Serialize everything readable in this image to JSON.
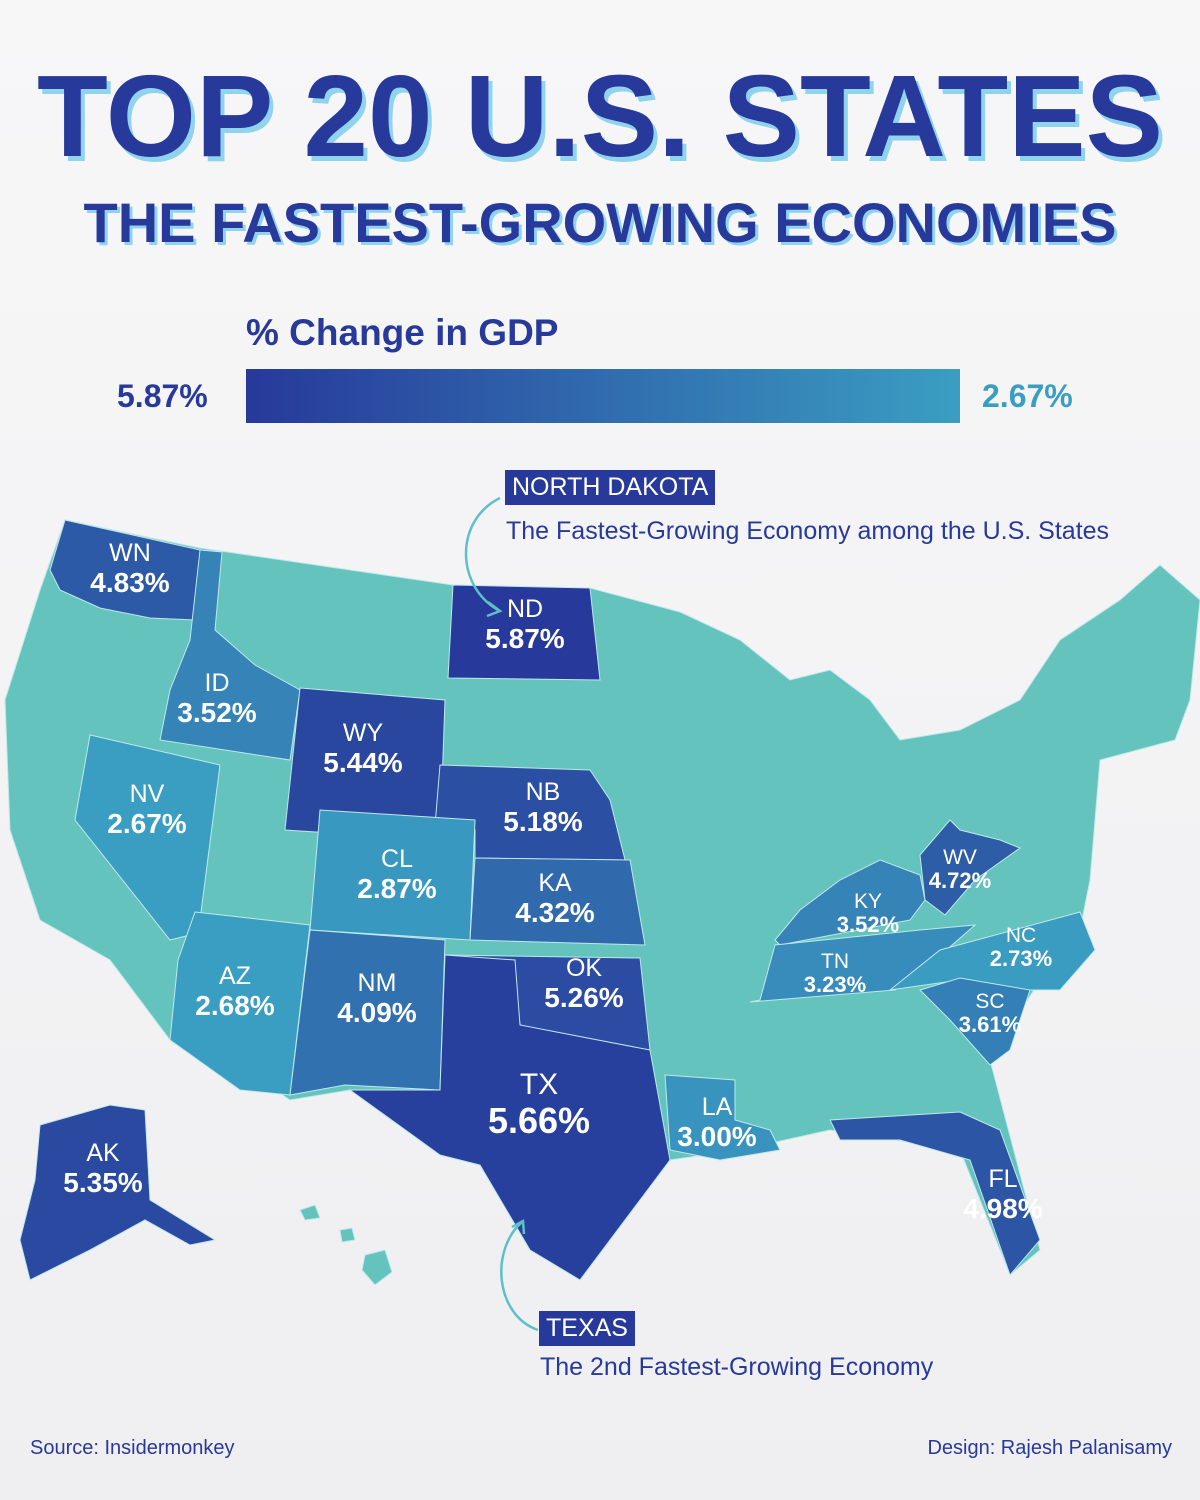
{
  "header": {
    "title": "TOP 20 U.S. STATES",
    "subtitle": "THE FASTEST-GROWING ECONOMIES"
  },
  "legend": {
    "title": "% Change in GDP",
    "max_label": "5.87%",
    "min_label": "2.67%",
    "max": 5.87,
    "min": 2.67,
    "color_max": "#27399a",
    "color_min": "#3a9ec2"
  },
  "map": {
    "base_color": "#64c4bd",
    "states": [
      {
        "abbr": "WN",
        "value": 4.83,
        "label": "4.83%"
      },
      {
        "abbr": "ID",
        "value": 3.52,
        "label": "3.52%"
      },
      {
        "abbr": "WY",
        "value": 5.44,
        "label": "5.44%"
      },
      {
        "abbr": "ND",
        "value": 5.87,
        "label": "5.87%"
      },
      {
        "abbr": "NB",
        "value": 5.18,
        "label": "5.18%"
      },
      {
        "abbr": "KA",
        "value": 4.32,
        "label": "4.32%"
      },
      {
        "abbr": "CL",
        "value": 2.87,
        "label": "2.87%"
      },
      {
        "abbr": "NV",
        "value": 2.67,
        "label": "2.67%"
      },
      {
        "abbr": "AZ",
        "value": 2.68,
        "label": "2.68%"
      },
      {
        "abbr": "NM",
        "value": 4.09,
        "label": "4.09%"
      },
      {
        "abbr": "OK",
        "value": 5.26,
        "label": "5.26%"
      },
      {
        "abbr": "TX",
        "value": 5.66,
        "label": "5.66%"
      },
      {
        "abbr": "LA",
        "value": 3.0,
        "label": "3.00%"
      },
      {
        "abbr": "AK",
        "value": 5.35,
        "label": "5.35%"
      },
      {
        "abbr": "FL",
        "value": 4.98,
        "label": "4.98%"
      },
      {
        "abbr": "KY",
        "value": 3.52,
        "label": "3.52%"
      },
      {
        "abbr": "WV",
        "value": 4.72,
        "label": "4.72%"
      },
      {
        "abbr": "TN",
        "value": 3.23,
        "label": "3.23%"
      },
      {
        "abbr": "NC",
        "value": 2.73,
        "label": "2.73%"
      },
      {
        "abbr": "SC",
        "value": 3.61,
        "label": "3.61%"
      }
    ]
  },
  "callouts": [
    {
      "state": "NORTH DAKOTA",
      "text": "The Fastest-Growing Economy among the U.S. States"
    },
    {
      "state": "TEXAS",
      "text": "The 2nd Fastest-Growing Economy"
    }
  ],
  "footer": {
    "source": "Source: Insidermonkey",
    "design": "Design: Rajesh Palanisamy"
  }
}
